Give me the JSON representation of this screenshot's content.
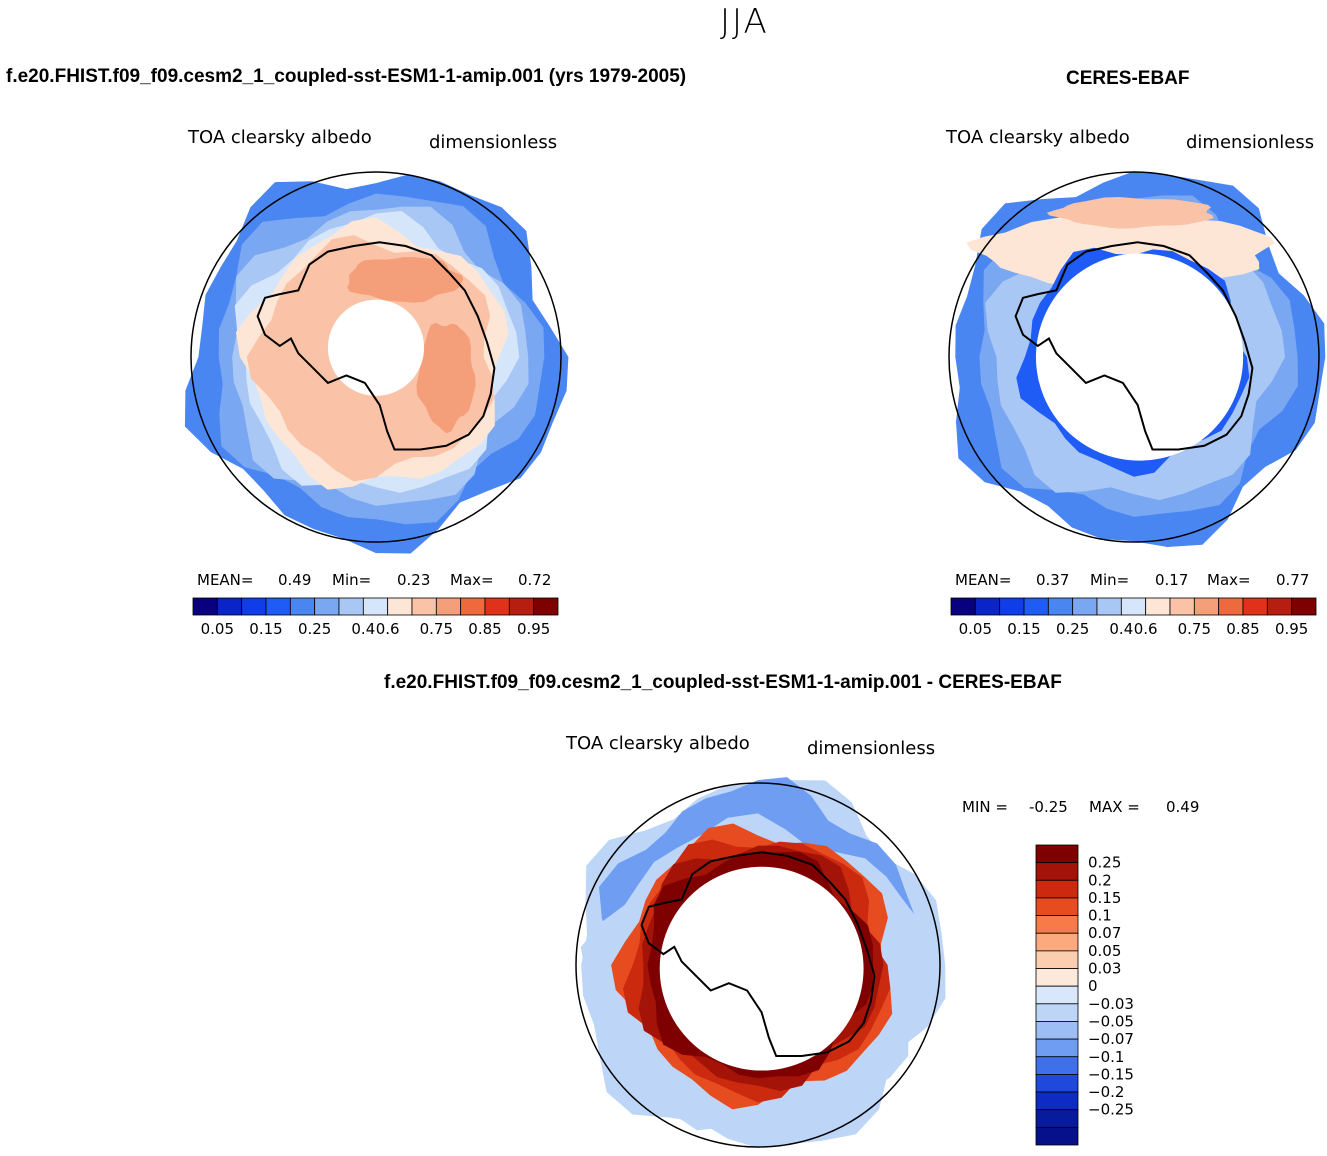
{
  "season": "JJA",
  "colors": {
    "seq": [
      "#08007f",
      "#0a24c8",
      "#0f3de8",
      "#1e5cf5",
      "#4a86f2",
      "#7aa7f2",
      "#a9c7f5",
      "#d6e6fa",
      "#fde6d6",
      "#fac2a6",
      "#f59e7a",
      "#ee6a3e",
      "#e0321a",
      "#b51e10",
      "#7f0000"
    ],
    "diff": [
      "#7f0000",
      "#a41308",
      "#cc2a0e",
      "#e74b20",
      "#f77a48",
      "#fba97f",
      "#fcceb0",
      "#fde9dc",
      "#d8e8fa",
      "#bdd6f7",
      "#9cbef5",
      "#6e9df2",
      "#3f70ea",
      "#1f48dc",
      "#0e2cc4",
      "#071c9c",
      "#05108a"
    ]
  },
  "chart_data": [
    {
      "type": "heatmap",
      "panel": "model",
      "header": "f.e20.FHIST.f09_f09.cesm2_1_coupled-sst-ESM1-1-amip.001 (yrs 1979-2005)",
      "title": "TOA clearsky albedo",
      "units": "dimensionless",
      "mean_label": "MEAN=",
      "mean": "0.49",
      "min_label": "Min=",
      "min": "0.23",
      "max_label": "Max=",
      "max": "0.72",
      "colorbar_ticks": [
        "0.05",
        "0.15",
        "0.25",
        "0.4",
        "0.6",
        "0.75",
        "0.85",
        "0.95"
      ]
    },
    {
      "type": "heatmap",
      "panel": "obs",
      "header": "CERES-EBAF",
      "title": "TOA clearsky albedo",
      "units": "dimensionless",
      "mean_label": "MEAN=",
      "mean": "0.37",
      "min_label": "Min=",
      "min": "0.17",
      "max_label": "Max=",
      "max": "0.77",
      "colorbar_ticks": [
        "0.05",
        "0.15",
        "0.25",
        "0.4",
        "0.6",
        "0.75",
        "0.85",
        "0.95"
      ]
    },
    {
      "type": "heatmap",
      "panel": "difference",
      "header": "f.e20.FHIST.f09_f09.cesm2_1_coupled-sst-ESM1-1-amip.001 - CERES-EBAF",
      "title": "TOA clearsky albedo",
      "units": "dimensionless",
      "min_label": "MIN =",
      "min": "-0.25",
      "max_label": "MAX =",
      "max": "0.49",
      "colorbar_ticks": [
        "0.25",
        "0.2",
        "0.15",
        "0.1",
        "0.07",
        "0.05",
        "0.03",
        "0",
        "−0.03",
        "−0.05",
        "−0.07",
        "−0.1",
        "−0.15",
        "−0.2",
        "−0.25"
      ]
    }
  ]
}
